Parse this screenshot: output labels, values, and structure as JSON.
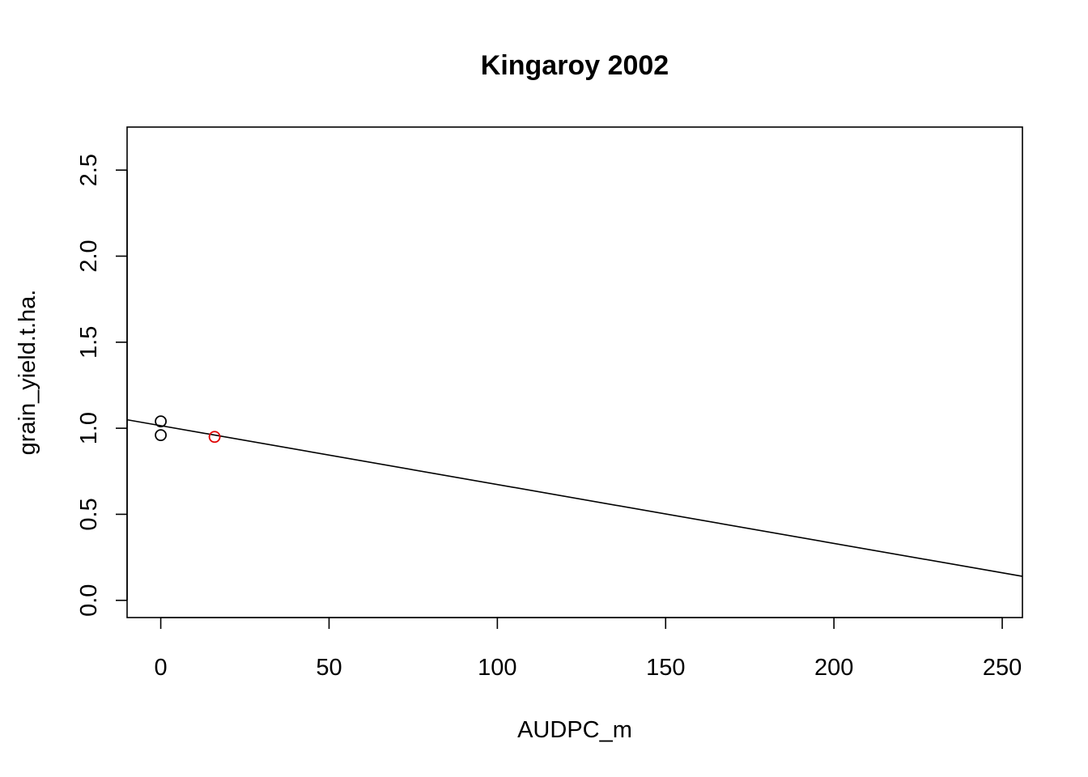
{
  "chart_data": {
    "type": "scatter",
    "title": "Kingaroy 2002",
    "xlabel": "AUDPC_m",
    "ylabel": "grain_yield.t.ha.",
    "xlim": [
      -10,
      256
    ],
    "ylim": [
      -0.1,
      2.75
    ],
    "x_ticks": [
      0,
      50,
      100,
      150,
      200,
      250
    ],
    "x_tick_labels": [
      "0",
      "50",
      "100",
      "150",
      "200",
      "250"
    ],
    "y_ticks": [
      0.0,
      0.5,
      1.0,
      1.5,
      2.0,
      2.5
    ],
    "y_tick_labels": [
      "0.0",
      "0.5",
      "1.0",
      "1.5",
      "2.0",
      "2.5"
    ],
    "grid": false,
    "series": [
      {
        "color": "#000000",
        "marker": "open-circle",
        "points": [
          {
            "x": 0,
            "y": 1.04
          },
          {
            "x": 0,
            "y": 0.96
          }
        ]
      },
      {
        "color": "#df0000",
        "marker": "open-circle",
        "points": [
          {
            "x": 16,
            "y": 0.95
          }
        ]
      }
    ],
    "regression_line": {
      "color": "#000000",
      "intercept": 1.015,
      "slope": -0.00342
    }
  }
}
